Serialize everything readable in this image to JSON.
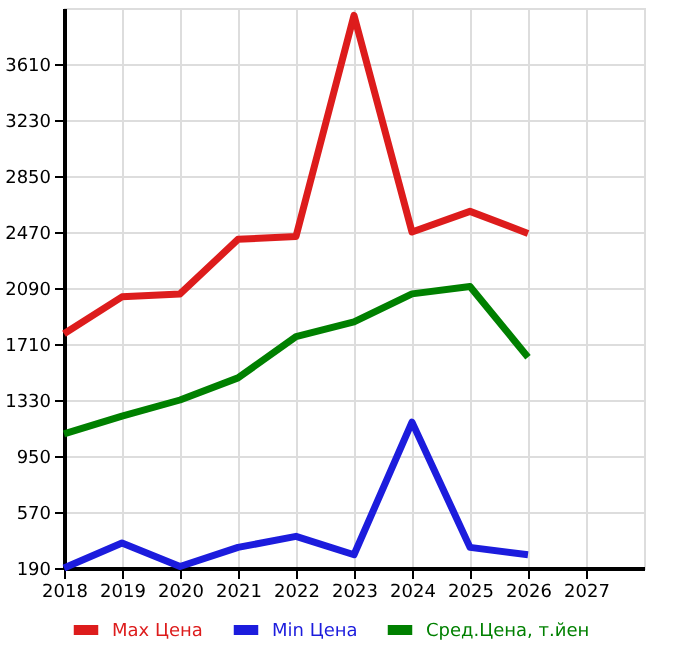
{
  "chart_data": {
    "type": "line",
    "x": [
      2018,
      2019,
      2020,
      2021,
      2022,
      2023,
      2024,
      2025,
      2026
    ],
    "series": [
      {
        "name": "Max Цена",
        "color": "#dd1c1c",
        "values": [
          1780,
          2030,
          2050,
          2420,
          2440,
          3940,
          2470,
          2610,
          2460
        ]
      },
      {
        "name": "Min Цена",
        "color": "#1c1cdd",
        "values": [
          190,
          360,
          200,
          330,
          405,
          280,
          1180,
          330,
          280
        ]
      },
      {
        "name": "Сред.Цена, т.йен",
        "color": "#008000",
        "values": [
          1100,
          1220,
          1330,
          1480,
          1760,
          1860,
          2050,
          2100,
          1620
        ]
      }
    ],
    "xlim": [
      2018,
      2028
    ],
    "xticks": [
      2018,
      2019,
      2020,
      2021,
      2022,
      2023,
      2024,
      2025,
      2026,
      2027
    ],
    "ylim": [
      190,
      3990
    ],
    "yticks": [
      190,
      570,
      950,
      1330,
      1710,
      2090,
      2470,
      2850,
      3230,
      3610
    ],
    "grid": true,
    "legend": "bottom",
    "marker": "none",
    "line_style": "solid"
  }
}
